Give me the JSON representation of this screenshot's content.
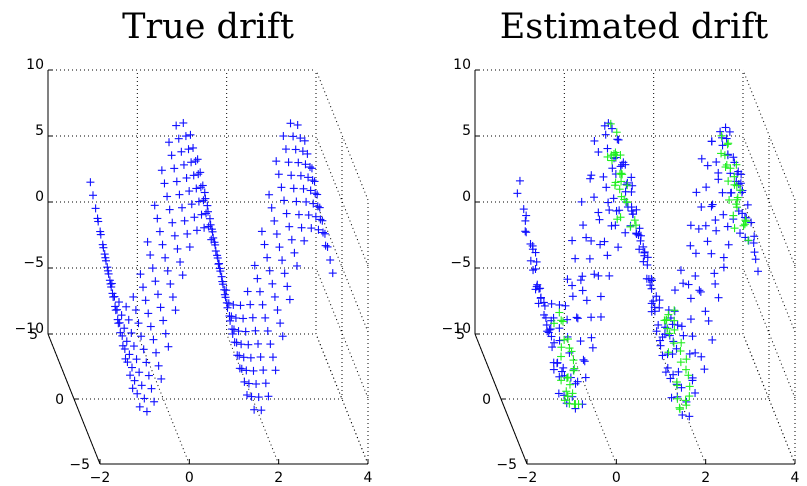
{
  "chart_data": [
    {
      "type": "scatter",
      "title": "True drift",
      "marker": "+",
      "projection": "3d",
      "grid": true,
      "xlim": [
        -2,
        4
      ],
      "ylim": [
        -5,
        5
      ],
      "zlim": [
        -10,
        10
      ],
      "x_ticks": [
        "−2",
        "0",
        "2",
        "4"
      ],
      "y_ticks": [
        "−5",
        "0",
        "5"
      ],
      "z_ticks": [
        "−10",
        "−5",
        "0",
        "5",
        "10"
      ],
      "series": [
        {
          "color": "#0000ff",
          "function": "z = 7*sin(2.5*x) + y"
        }
      ]
    },
    {
      "type": "scatter",
      "title": "Estimated drift",
      "marker": "+",
      "projection": "3d",
      "grid": true,
      "xlim": [
        -2,
        4
      ],
      "ylim": [
        -5,
        5
      ],
      "zlim": [
        -10,
        10
      ],
      "x_ticks": [
        "−2",
        "0",
        "2",
        "4"
      ],
      "y_ticks": [
        "−5",
        "0",
        "5"
      ],
      "z_ticks": [
        "−10",
        "−5",
        "0",
        "5",
        "10"
      ],
      "series": [
        {
          "color": "#0000ff",
          "function": "z ≈ 7*sin(2.5*x) + y"
        },
        {
          "color": "#00ff00",
          "function": "z ≈ 7*sin(2.5*x) + y (along wave ridges/troughs)"
        }
      ]
    }
  ]
}
